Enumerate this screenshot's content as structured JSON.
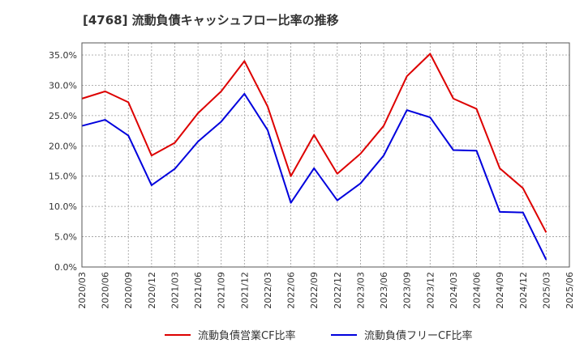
{
  "chart_data": {
    "type": "line",
    "title": "[4768]  流動負債キャッシュフロー比率の推移",
    "xlabel": "",
    "ylabel": "",
    "ylim": [
      0,
      0.37
    ],
    "y_ticks": [
      0,
      0.05,
      0.1,
      0.15,
      0.2,
      0.25,
      0.3,
      0.35
    ],
    "y_tick_labels": [
      "0.0%",
      "5.0%",
      "10.0%",
      "15.0%",
      "20.0%",
      "25.0%",
      "30.0%",
      "35.0%"
    ],
    "x": [
      "2020/03",
      "2020/06",
      "2020/09",
      "2020/12",
      "2021/03",
      "2021/06",
      "2021/09",
      "2021/12",
      "2022/03",
      "2022/06",
      "2022/09",
      "2022/12",
      "2023/03",
      "2023/06",
      "2023/09",
      "2023/12",
      "2024/03",
      "2024/06",
      "2024/09",
      "2024/12",
      "2025/03",
      "2025/06"
    ],
    "grid": true,
    "legend_position": "bottom",
    "series": [
      {
        "name": "流動負債営業CF比率",
        "color": "#dd0000",
        "values": [
          0.278,
          0.29,
          0.272,
          0.184,
          0.205,
          0.254,
          0.29,
          0.34,
          0.265,
          0.15,
          0.218,
          0.154,
          0.187,
          0.233,
          0.315,
          0.352,
          0.278,
          0.261,
          0.163,
          0.13,
          0.057,
          null
        ]
      },
      {
        "name": "流動負債フリーCF比率",
        "color": "#0000dd",
        "values": [
          0.233,
          0.243,
          0.217,
          0.135,
          0.162,
          0.207,
          0.24,
          0.286,
          0.226,
          0.106,
          0.163,
          0.11,
          0.138,
          0.184,
          0.259,
          0.247,
          0.193,
          0.192,
          0.091,
          0.09,
          0.012,
          null
        ]
      }
    ]
  }
}
